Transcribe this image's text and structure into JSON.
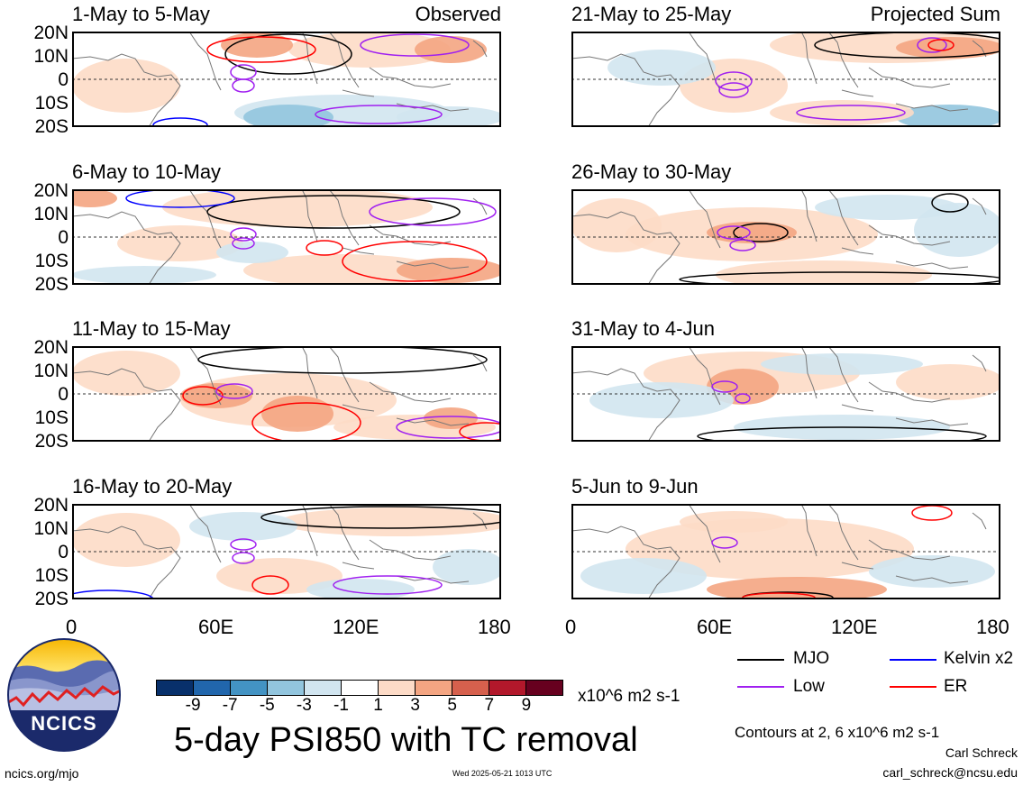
{
  "figure": {
    "title": "5-day PSI850 with TC removal",
    "site": "ncics.org/mjo",
    "timestamp": "Wed 2025-05-21 1013 UTC",
    "author": "Carl Schreck",
    "email": "carl_schreck@ncsu.edu",
    "contour_note": "Contours at 2, 6 x10^6 m2 s-1",
    "logo_text": "NCICS"
  },
  "axes": {
    "lat_labels": [
      "20N",
      "10N",
      "0",
      "10S",
      "20S"
    ],
    "lon_labels": [
      "0",
      "60E",
      "120E",
      "180"
    ]
  },
  "colorbar": {
    "unit": "x10^6 m2 s-1",
    "ticks": [
      "-9",
      "-7",
      "-5",
      "-3",
      "-1",
      "1",
      "3",
      "5",
      "7",
      "9"
    ],
    "colors": [
      "#08306b",
      "#2166ac",
      "#4393c3",
      "#92c5de",
      "#d1e5f0",
      "#ffffff",
      "#fddbc7",
      "#f4a582",
      "#d6604d",
      "#b2182b",
      "#67001f"
    ]
  },
  "legend": [
    {
      "label": "MJO",
      "color": "#000000"
    },
    {
      "label": "Kelvin x2",
      "color": "#0000ff"
    },
    {
      "label": "Low",
      "color": "#a020f0"
    },
    {
      "label": "ER",
      "color": "#ff0000"
    }
  ],
  "panels": [
    {
      "period": "1-May to 5-May",
      "tag": "Observed"
    },
    {
      "period": "6-May to 10-May",
      "tag": ""
    },
    {
      "period": "11-May to 15-May",
      "tag": ""
    },
    {
      "period": "16-May to 20-May",
      "tag": ""
    },
    {
      "period": "21-May to 25-May",
      "tag": "Projected Sum"
    },
    {
      "period": "26-May to 30-May",
      "tag": ""
    },
    {
      "period": "31-May to 4-Jun",
      "tag": ""
    },
    {
      "period": "5-Jun to 9-Jun",
      "tag": ""
    }
  ]
}
